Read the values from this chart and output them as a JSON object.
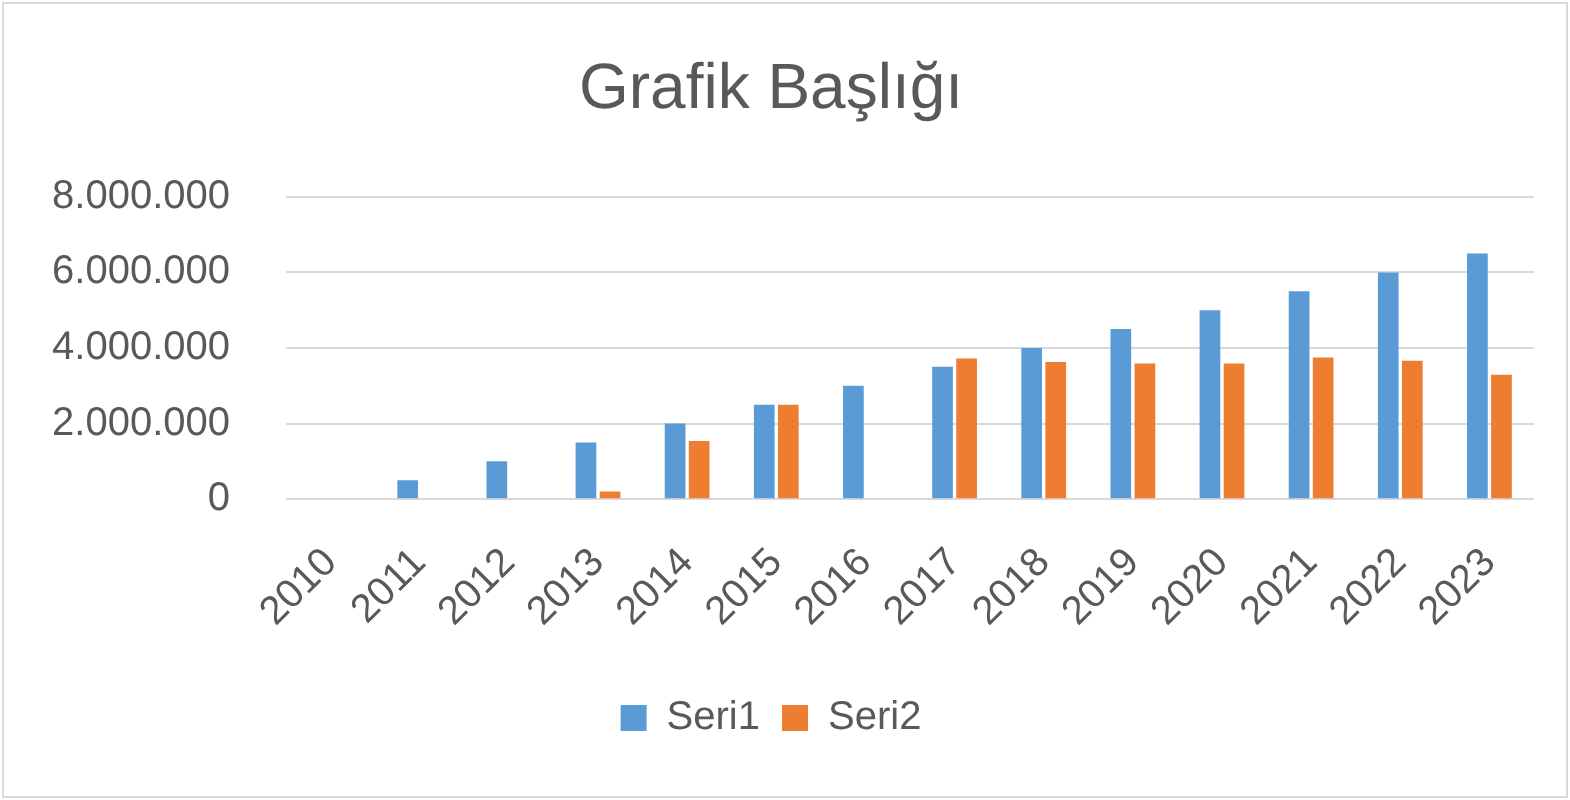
{
  "chart_data": {
    "type": "bar",
    "title": "Grafik Başlığı",
    "categories": [
      "2010",
      "2011",
      "2012",
      "2013",
      "2014",
      "2015",
      "2016",
      "2017",
      "2018",
      "2019",
      "2020",
      "2021",
      "2022",
      "2023"
    ],
    "series": [
      {
        "name": "Seri1",
        "color": "#5b9bd5",
        "values": [
          null,
          500000,
          1000000,
          1500000,
          2000000,
          2500000,
          3000000,
          3500000,
          4000000,
          4500000,
          5000000,
          5500000,
          6000000,
          6500000
        ]
      },
      {
        "name": "Seri2",
        "color": "#ed7d31",
        "values": [
          null,
          null,
          null,
          200000,
          1540000,
          2500000,
          null,
          3720000,
          3630000,
          3590000,
          3590000,
          3750000,
          3660000,
          3290000
        ]
      }
    ],
    "ylim": [
      0,
      8000000
    ],
    "yticks": [
      0,
      {
        "value": 2000000,
        "label": "2.000.000"
      },
      {
        "value": 4000000,
        "label": "4.000.000"
      },
      {
        "value": 6000000,
        "label": "6.000.000"
      },
      {
        "value": 8000000,
        "label": "8.000.000"
      }
    ],
    "grid": "y",
    "legend": "bottom"
  }
}
